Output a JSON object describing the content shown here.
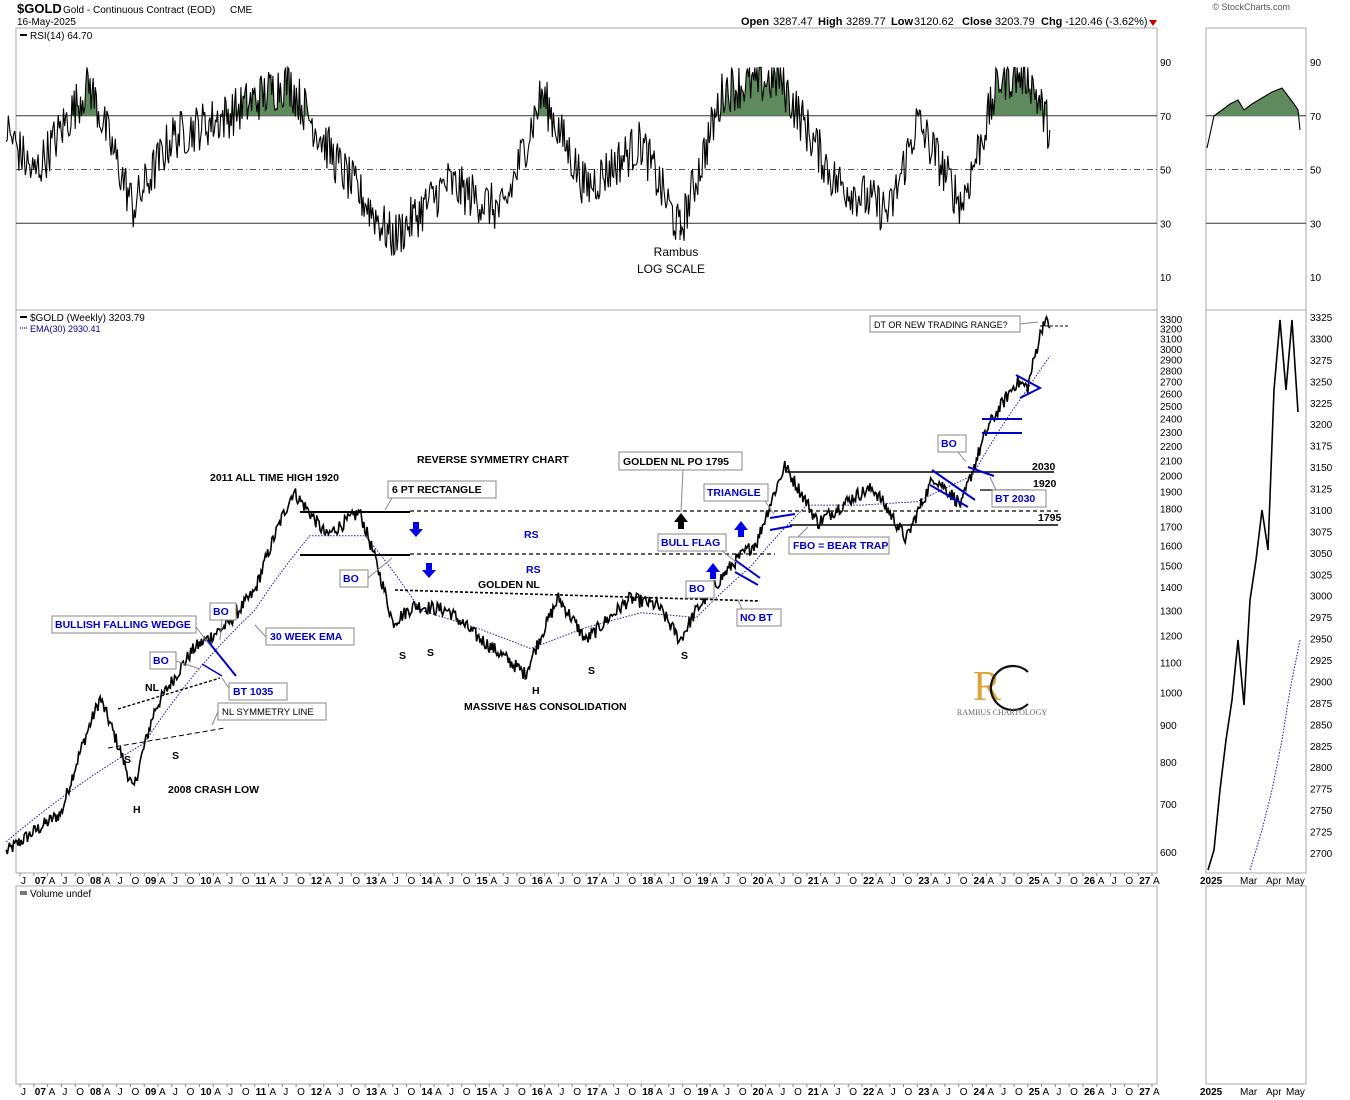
{
  "header": {
    "symbol": "$GOLD",
    "description": "Gold - Continuous Contract (EOD)",
    "exchange": "CME",
    "date": "16-May-2025",
    "watermark": "© StockCharts.com",
    "open_label": "Open",
    "open": "3287.47",
    "high_label": "High",
    "high": "3289.77",
    "low_label": "Low",
    "low": "3120.62",
    "close_label": "Close",
    "close": "3203.79",
    "chg_label": "Chg",
    "chg": "-120.46 (-3.62%)"
  },
  "rsi_panel": {
    "legend": "RSI(14) 64.70",
    "ticks": [
      "90",
      "70",
      "50",
      "30",
      "10"
    ],
    "note_line1": "Rambus",
    "note_line2": "LOG SCALE"
  },
  "price_panel": {
    "legend_price": "$GOLD (Weekly) 3203.79",
    "legend_ema": "EMA(30) 2930.41",
    "ticks": [
      "3300",
      "3200",
      "3100",
      "3000",
      "2900",
      "2800",
      "2700",
      "2600",
      "2500",
      "2400",
      "2300",
      "2200",
      "2100",
      "2000",
      "1900",
      "1800",
      "1700",
      "1600",
      "1500",
      "1400",
      "1300",
      "1200",
      "1100",
      "1000",
      "900",
      "800",
      "700",
      "600"
    ]
  },
  "volume_panel": {
    "legend": "Volume undef"
  },
  "x_axis": {
    "labels": [
      "J",
      "07",
      "A",
      "J",
      "O",
      "08",
      "A",
      "J",
      "O",
      "09",
      "A",
      "J",
      "O",
      "10",
      "A",
      "J",
      "O",
      "11",
      "A",
      "J",
      "O",
      "12",
      "A",
      "J",
      "O",
      "13",
      "A",
      "J",
      "O",
      "14",
      "A",
      "J",
      "O",
      "15",
      "A",
      "J",
      "O",
      "16",
      "A",
      "J",
      "O",
      "17",
      "A",
      "J",
      "O",
      "18",
      "A",
      "J",
      "O",
      "19",
      "A",
      "J",
      "O",
      "20",
      "A",
      "J",
      "O",
      "21",
      "A",
      "J",
      "O",
      "22",
      "A",
      "J",
      "O",
      "23",
      "A",
      "J",
      "O",
      "24",
      "A",
      "J",
      "O",
      "25",
      "A",
      "J",
      "O",
      "26",
      "A",
      "J",
      "O",
      "27",
      "A"
    ]
  },
  "annotations": {
    "rev_sym": "REVERSE SYMMETRY CHART",
    "ath": "2011 ALL TIME HIGH 1920",
    "rect6": "6 PT RECTANGLE",
    "golden_po": "GOLDEN NL PO 1795",
    "triangle": "TRIANGLE",
    "bull_flag": "BULL FLAG",
    "bo": "BO",
    "no_bt": "NO BT",
    "golden_nl": "GOLDEN NL",
    "rs": "RS",
    "s": "S",
    "h": "H",
    "massive": "MASSIVE H&S CONSOLIDATION",
    "fbo": "FBO = BEAR TRAP",
    "bt2030": "BT 2030",
    "lvl2030": "2030",
    "lvl1920": "1920",
    "lvl1795": "1795",
    "dt": "DT OR NEW TRADING RANGE?",
    "wedge": "BULLISH FALLING WEDGE",
    "ema30": "30 WEEK EMA",
    "bt1035": "BT 1035",
    "nl": "NL",
    "nl_sym": "NL SYMMETRY LINE",
    "crash": "2008 CRASH LOW",
    "logo_brand": "RAMBUS CHARTOLOGY"
  },
  "inset": {
    "rsi_ticks": [
      "90",
      "70",
      "50",
      "30",
      "10"
    ],
    "price_ticks": [
      "3325",
      "3300",
      "3275",
      "3250",
      "3225",
      "3200",
      "3175",
      "3150",
      "3125",
      "3100",
      "3075",
      "3050",
      "3025",
      "3000",
      "2975",
      "2950",
      "2925",
      "2900",
      "2875",
      "2850",
      "2825",
      "2800",
      "2775",
      "2750",
      "2725",
      "2700"
    ],
    "x_labels": [
      "2025",
      "Mar",
      "Apr",
      "May"
    ]
  },
  "chart_data": {
    "type": "line",
    "title": "$GOLD Gold - Continuous Contract (EOD) CME",
    "y_scale": "log",
    "ylim": [
      570,
      3350
    ],
    "series": [
      {
        "name": "$GOLD (Weekly)",
        "x": [
          2006.5,
          2007.0,
          2007.5,
          2008.2,
          2008.8,
          2009.2,
          2009.9,
          2010.5,
          2011.0,
          2011.7,
          2012.3,
          2012.9,
          2013.5,
          2013.9,
          2014.5,
          2015.0,
          2015.9,
          2016.5,
          2017.0,
          2017.8,
          2018.3,
          2018.7,
          2019.0,
          2019.7,
          2020.1,
          2020.6,
          2021.2,
          2021.9,
          2022.2,
          2022.8,
          2023.3,
          2023.8,
          2024.3,
          2024.8,
          2025.0,
          2025.3,
          2025.4
        ],
        "values": [
          600,
          640,
          680,
          980,
          730,
          950,
          1150,
          1240,
          1380,
          1900,
          1650,
          1780,
          1250,
          1320,
          1300,
          1200,
          1060,
          1350,
          1180,
          1350,
          1320,
          1180,
          1300,
          1520,
          1620,
          2060,
          1720,
          1880,
          1920,
          1630,
          1990,
          1820,
          2350,
          2700,
          2650,
          3300,
          3204
        ]
      },
      {
        "name": "EMA(30)",
        "x": [
          2006.5,
          2008.0,
          2009.0,
          2010.0,
          2011.0,
          2012.0,
          2013.0,
          2014.0,
          2015.0,
          2016.0,
          2017.0,
          2018.0,
          2019.0,
          2020.0,
          2021.0,
          2022.0,
          2023.0,
          2024.0,
          2025.0,
          2025.4
        ],
        "values": [
          620,
          760,
          850,
          1080,
          1300,
          1650,
          1650,
          1300,
          1230,
          1150,
          1230,
          1290,
          1270,
          1500,
          1820,
          1820,
          1840,
          2000,
          2640,
          2930
        ]
      },
      {
        "name": "RSI(14)",
        "x": [
          2006.5,
          2007.0,
          2008.0,
          2008.8,
          2009.5,
          2010.5,
          2011.6,
          2012.5,
          2013.5,
          2014.5,
          2015.5,
          2016.2,
          2017.0,
          2018.0,
          2018.7,
          2019.5,
          2020.5,
          2021.5,
          2022.5,
          2023.0,
          2023.8,
          2024.5,
          2025.0,
          2025.4
        ],
        "values": [
          65,
          48,
          82,
          36,
          62,
          70,
          83,
          52,
          24,
          45,
          34,
          78,
          43,
          60,
          27,
          80,
          84,
          46,
          34,
          68,
          37,
          84,
          86,
          64.7
        ]
      }
    ],
    "rsi_ylim": [
      0,
      100
    ],
    "rsi_levels": [
      70,
      50,
      30
    ],
    "levels": [
      2030,
      1920,
      1795
    ],
    "xlabel": "",
    "ylabel": ""
  }
}
